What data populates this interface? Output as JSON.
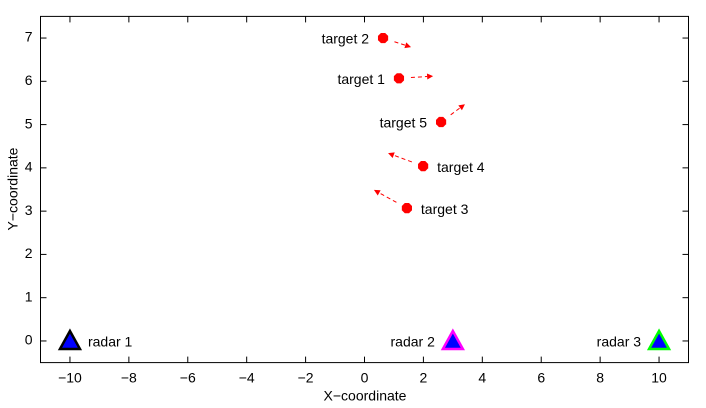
{
  "chart_data": {
    "type": "scatter",
    "xlabel": "X−coordinate",
    "ylabel": "Y−coordinate",
    "xlim": [
      -11,
      11
    ],
    "ylim": [
      -0.5,
      7.5
    ],
    "xticks": [
      {
        "value": -10,
        "label": "−10"
      },
      {
        "value": -8,
        "label": "−8"
      },
      {
        "value": -6,
        "label": "−6"
      },
      {
        "value": -4,
        "label": "−4"
      },
      {
        "value": -2,
        "label": "−2"
      },
      0,
      2,
      4,
      6,
      8,
      10
    ],
    "yticks": [
      0,
      1,
      2,
      3,
      4,
      5,
      6,
      7
    ],
    "target_color": "#ff0000",
    "targets": [
      {
        "name": "target 1",
        "x": 1.17,
        "y": 6.07,
        "heading_x": 2.33,
        "heading_y": 6.12,
        "label_side": "left"
      },
      {
        "name": "target 2",
        "x": 0.63,
        "y": 7.0,
        "heading_x": 1.58,
        "heading_y": 6.79,
        "label_side": "left"
      },
      {
        "name": "target 3",
        "x": 1.44,
        "y": 3.07,
        "heading_x": 0.32,
        "heading_y": 3.49,
        "label_side": "right"
      },
      {
        "name": "target 4",
        "x": 1.99,
        "y": 4.04,
        "heading_x": 0.8,
        "heading_y": 4.34,
        "label_side": "right"
      },
      {
        "name": "target 5",
        "x": 2.6,
        "y": 5.06,
        "heading_x": 3.41,
        "heading_y": 5.47,
        "label_side": "left"
      }
    ],
    "radar_fill": "#0000ff",
    "radars": [
      {
        "name": "radar 1",
        "x": -10,
        "y": 0,
        "edge_color": "#000000",
        "label_side": "right"
      },
      {
        "name": "radar 2",
        "x": 3,
        "y": 0,
        "edge_color": "#ff00ff",
        "label_side": "left"
      },
      {
        "name": "radar 3",
        "x": 10,
        "y": 0,
        "edge_color": "#00ff00",
        "label_side": "left"
      }
    ]
  }
}
